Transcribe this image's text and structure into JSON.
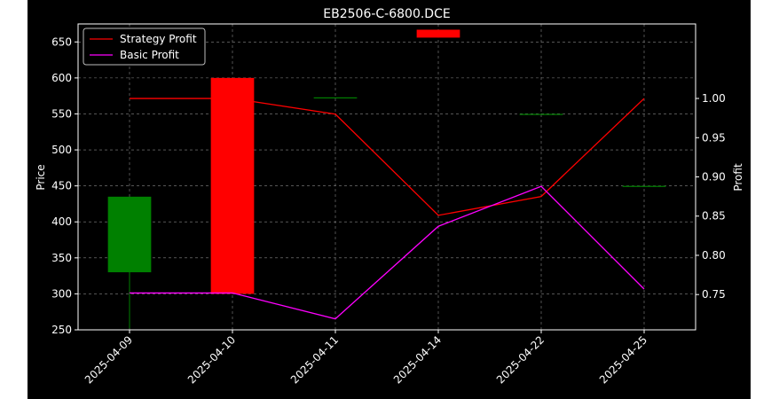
{
  "chart_data": {
    "type": "candlestick-with-profit-lines",
    "title": "EB2506-C-6800.DCE",
    "xlabel": "",
    "ylabel_left": "Price",
    "ylabel_right": "Profit",
    "categories": [
      "2025-04-09",
      "2025-04-10",
      "2025-04-11",
      "2025-04-14",
      "2025-04-22",
      "2025-04-25"
    ],
    "y_left_ticks": [
      250,
      300,
      350,
      400,
      450,
      500,
      550,
      600,
      650
    ],
    "y_left_range": [
      250,
      675
    ],
    "y_right_ticks": [
      0.75,
      0.8,
      0.85,
      0.9,
      0.95,
      1.0
    ],
    "y_right_range": [
      0.705,
      1.095
    ],
    "grid": true,
    "legend_position": "top-left",
    "candles": [
      {
        "x": "2025-04-09",
        "open": 330,
        "close": 435,
        "high": 435,
        "low": 252
      },
      {
        "x": "2025-04-10",
        "open": 600,
        "close": 300,
        "high": 600,
        "low": 300
      },
      {
        "x": "2025-04-11",
        "open": 573,
        "close": 573,
        "high": 573,
        "low": 573
      },
      {
        "x": "2025-04-14",
        "open": 667,
        "close": 656,
        "high": 667,
        "low": 656
      },
      {
        "x": "2025-04-22",
        "open": 550,
        "close": 550,
        "high": 550,
        "low": 550
      },
      {
        "x": "2025-04-25",
        "open": 450,
        "close": 450,
        "high": 450,
        "low": 450
      }
    ],
    "series": [
      {
        "name": "Strategy Profit",
        "axis": "right",
        "color": "#ff0000",
        "values": [
          1.0,
          1.0,
          0.98,
          0.851,
          0.875,
          1.0
        ]
      },
      {
        "name": "Basic Profit",
        "axis": "right",
        "color": "#ff00ff",
        "values": [
          0.752,
          0.752,
          0.719,
          0.837,
          0.888,
          0.757
        ]
      }
    ],
    "colors": {
      "background": "#000000",
      "figure_margin": "#ffffff",
      "up": "#008000",
      "down": "#ff0000",
      "axes": "#ffffff",
      "grid": "#888888"
    }
  }
}
